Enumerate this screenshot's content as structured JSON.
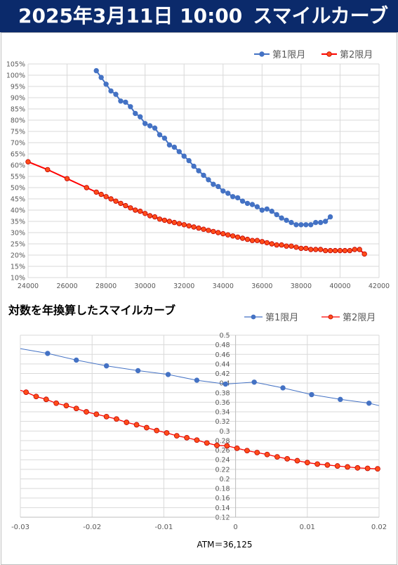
{
  "header": {
    "date": "2025年3月11日 10:00",
    "title": "スマイルカーブ"
  },
  "colors": {
    "banner": "#0b2a6b",
    "series1": "#4472c4",
    "series2": "#ff0000",
    "series2_fill": "#ff4d1a"
  },
  "chart_data": [
    {
      "type": "line",
      "title": "",
      "xlim": [
        24000,
        42000
      ],
      "ylim": [
        0.1,
        1.05
      ],
      "x_ticks": [
        24000,
        26000,
        28000,
        30000,
        32000,
        34000,
        36000,
        38000,
        40000,
        42000
      ],
      "y_ticks": [
        0.1,
        0.15,
        0.2,
        0.25,
        0.3,
        0.35,
        0.4,
        0.45,
        0.5,
        0.55,
        0.6,
        0.65,
        0.7,
        0.75,
        0.8,
        0.85,
        0.9,
        0.95,
        1.0,
        1.05
      ],
      "y_tick_labels": [
        "10%",
        "15%",
        "20%",
        "25%",
        "30%",
        "35%",
        "40%",
        "45%",
        "50%",
        "55%",
        "60%",
        "65%",
        "70%",
        "75%",
        "80%",
        "85%",
        "90%",
        "95%",
        "100%",
        "105%"
      ],
      "legend_position": "top-right",
      "series": [
        {
          "name": "第1限月",
          "color": "#4472c4",
          "x": [
            27500,
            27750,
            28000,
            28250,
            28500,
            28750,
            29000,
            29250,
            29500,
            29750,
            30000,
            30250,
            30500,
            30750,
            31000,
            31250,
            31500,
            31750,
            32000,
            32250,
            32500,
            32750,
            33000,
            33250,
            33500,
            33750,
            34000,
            34250,
            34500,
            34750,
            35000,
            35250,
            35500,
            35750,
            36000,
            36250,
            36500,
            36750,
            37000,
            37250,
            37500,
            37750,
            38000,
            38250,
            38500,
            38750,
            39000,
            39250,
            39500
          ],
          "y": [
            1.02,
            0.99,
            0.96,
            0.93,
            0.915,
            0.885,
            0.88,
            0.86,
            0.83,
            0.815,
            0.785,
            0.775,
            0.765,
            0.735,
            0.72,
            0.69,
            0.68,
            0.66,
            0.64,
            0.62,
            0.595,
            0.575,
            0.555,
            0.535,
            0.515,
            0.505,
            0.485,
            0.475,
            0.46,
            0.455,
            0.44,
            0.43,
            0.425,
            0.415,
            0.4,
            0.405,
            0.395,
            0.38,
            0.365,
            0.355,
            0.345,
            0.335,
            0.335,
            0.335,
            0.335,
            0.345,
            0.345,
            0.35,
            0.37
          ]
        },
        {
          "name": "第2限月",
          "color": "#ff0000",
          "x": [
            24000,
            25000,
            26000,
            27000,
            27500,
            27750,
            28000,
            28250,
            28500,
            28750,
            29000,
            29250,
            29500,
            29750,
            30000,
            30250,
            30500,
            30750,
            31000,
            31250,
            31500,
            31750,
            32000,
            32250,
            32500,
            32750,
            33000,
            33250,
            33500,
            33750,
            34000,
            34250,
            34500,
            34750,
            35000,
            35250,
            35500,
            35750,
            36000,
            36250,
            36500,
            36750,
            37000,
            37250,
            37500,
            37750,
            38000,
            38250,
            38500,
            38750,
            39000,
            39250,
            39500,
            39750,
            40000,
            40250,
            40500,
            40750,
            41000,
            41250
          ],
          "y": [
            0.615,
            0.58,
            0.54,
            0.5,
            0.48,
            0.47,
            0.46,
            0.45,
            0.44,
            0.43,
            0.42,
            0.41,
            0.4,
            0.395,
            0.385,
            0.375,
            0.37,
            0.36,
            0.355,
            0.35,
            0.345,
            0.34,
            0.335,
            0.33,
            0.325,
            0.32,
            0.315,
            0.31,
            0.305,
            0.3,
            0.295,
            0.29,
            0.285,
            0.28,
            0.275,
            0.27,
            0.265,
            0.265,
            0.26,
            0.255,
            0.25,
            0.245,
            0.245,
            0.24,
            0.24,
            0.235,
            0.23,
            0.23,
            0.225,
            0.225,
            0.225,
            0.22,
            0.22,
            0.22,
            0.22,
            0.22,
            0.22,
            0.225,
            0.225,
            0.205
          ]
        }
      ]
    },
    {
      "type": "line",
      "title": "対数を年換算したスマイルカーブ",
      "xlabel": "ATM＝36,125",
      "xlim": [
        -0.03,
        0.02
      ],
      "ylim": [
        0.12,
        0.5
      ],
      "x_ticks": [
        -0.03,
        -0.02,
        -0.01,
        0,
        0.01,
        0.02
      ],
      "x_tick_labels": [
        "-0.03",
        "-0.02",
        "-0.01",
        "0",
        "0.01",
        "0.02"
      ],
      "y_ticks": [
        0.12,
        0.14,
        0.16,
        0.18,
        0.2,
        0.22,
        0.24,
        0.26,
        0.28,
        0.3,
        0.32,
        0.34,
        0.36,
        0.38,
        0.4,
        0.42,
        0.44,
        0.46,
        0.48,
        0.5
      ],
      "y_tick_labels": [
        "0.12",
        "0.14",
        "0.16",
        "0.18",
        "0.2",
        "0.22",
        "0.24",
        "0.26",
        "0.28",
        "0.3",
        "0.32",
        "0.34",
        "0.36",
        "0.38",
        "0.4",
        "0.42",
        "0.44",
        "0.46",
        "0.48",
        "0.5"
      ],
      "legend_position": "top-right",
      "series": [
        {
          "name": "第1限月",
          "color": "#4472c4",
          "line_start": [
            -0.03,
            0.472
          ],
          "line_end": [
            0.02,
            0.353
          ],
          "x": [
            -0.0262,
            -0.0222,
            -0.018,
            -0.0136,
            -0.0094,
            -0.0054,
            -0.0014,
            0.0026,
            0.0066,
            0.0106,
            0.0146,
            0.0186
          ],
          "y": [
            0.462,
            0.448,
            0.436,
            0.426,
            0.418,
            0.406,
            0.398,
            0.402,
            0.39,
            0.376,
            0.366,
            0.358
          ]
        },
        {
          "name": "第2限月",
          "color": "#ff0000",
          "line_start": [
            -0.03,
            0.385
          ],
          "x": [
            -0.0292,
            -0.0278,
            -0.0264,
            -0.025,
            -0.0236,
            -0.0222,
            -0.0208,
            -0.0194,
            -0.018,
            -0.0166,
            -0.0152,
            -0.0138,
            -0.0124,
            -0.011,
            -0.0096,
            -0.0082,
            -0.0068,
            -0.0054,
            -0.004,
            -0.0026,
            -0.0012,
            0.0002,
            0.0016,
            0.003,
            0.0044,
            0.0058,
            0.0072,
            0.0086,
            0.01,
            0.0114,
            0.0128,
            0.0142,
            0.0156,
            0.017,
            0.0184,
            0.0198
          ],
          "y": [
            0.381,
            0.372,
            0.366,
            0.358,
            0.353,
            0.347,
            0.34,
            0.335,
            0.33,
            0.325,
            0.318,
            0.313,
            0.307,
            0.301,
            0.296,
            0.29,
            0.286,
            0.281,
            0.275,
            0.27,
            0.269,
            0.264,
            0.259,
            0.255,
            0.251,
            0.246,
            0.242,
            0.238,
            0.234,
            0.231,
            0.229,
            0.227,
            0.225,
            0.223,
            0.222,
            0.221
          ]
        }
      ]
    }
  ]
}
